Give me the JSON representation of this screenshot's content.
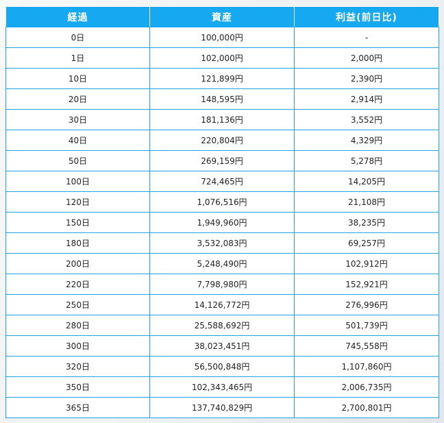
{
  "table": {
    "headers": [
      "経過",
      "資産",
      "利益(前日比)"
    ],
    "rows": [
      [
        "0日",
        "100,000円",
        "-"
      ],
      [
        "1日",
        "102,000円",
        "2,000円"
      ],
      [
        "10日",
        "121,899円",
        "2,390円"
      ],
      [
        "20日",
        "148,595円",
        "2,914円"
      ],
      [
        "30日",
        "181,136円",
        "3,552円"
      ],
      [
        "40日",
        "220,804円",
        "4,329円"
      ],
      [
        "50日",
        "269,159円",
        "5,278円"
      ],
      [
        "100日",
        "724,465円",
        "14,205円"
      ],
      [
        "120日",
        "1,076,516円",
        "21,108円"
      ],
      [
        "150日",
        "1,949,960円",
        "38,235円"
      ],
      [
        "180日",
        "3,532,083円",
        "69,257円"
      ],
      [
        "200日",
        "5,248,490円",
        "102,912円"
      ],
      [
        "220日",
        "7,798,980円",
        "152,921円"
      ],
      [
        "250日",
        "14,126,772円",
        "276,996円"
      ],
      [
        "280日",
        "25,588,692円",
        "501,739円"
      ],
      [
        "300日",
        "38,023,451円",
        "745,558円"
      ],
      [
        "320日",
        "56,500,848円",
        "1,107,860円"
      ],
      [
        "350日",
        "102,343,465円",
        "2,006,735円"
      ],
      [
        "365日",
        "137,740,829円",
        "2,700,801円"
      ]
    ]
  },
  "colors": {
    "header_bg": "#16a8f0",
    "border": "#1ea4e6"
  }
}
